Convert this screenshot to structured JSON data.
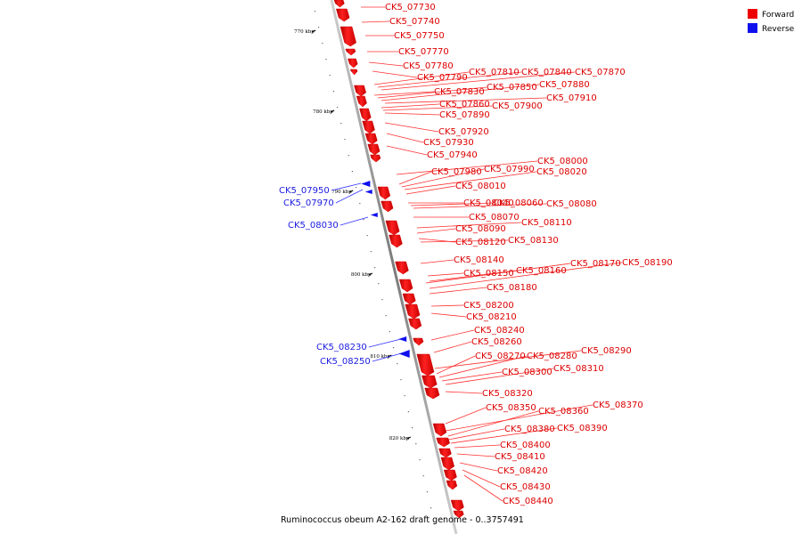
{
  "legend": [
    {
      "label": "Forward",
      "color": "#ee0000"
    },
    {
      "label": "Reverse",
      "color": "#1010ee"
    }
  ],
  "caption": "Ruminococcus obeum A2-162 draft genome - 0..3757491",
  "ticks": [
    "770 kbp",
    "780 kbp",
    "790 kbp",
    "800 kbp",
    "810 kbp",
    "820 kbp"
  ],
  "forward_labels": [
    "CK5_07730",
    "CK5_07740",
    "CK5_07750",
    "CK5_07770",
    "CK5_07780",
    "CK5_07790",
    "CK5_07810",
    "CK5_07840",
    "CK5_07870",
    "CK5_07830",
    "CK5_07850",
    "CK5_07880",
    "CK5_07910",
    "CK5_07860",
    "CK5_07900",
    "CK5_07890",
    "CK5_07920",
    "CK5_07930",
    "CK5_07940",
    "CK5_08000",
    "CK5_07980",
    "CK5_07990",
    "CK5_08020",
    "CK5_08010",
    "CK5_08040",
    "CK5_08060",
    "CK5_08080",
    "CK5_08070",
    "CK5_08110",
    "CK5_08090",
    "CK5_08120",
    "CK5_08130",
    "CK5_08140",
    "CK5_08170",
    "CK5_08190",
    "CK5_08150",
    "CK5_08160",
    "CK5_08180",
    "CK5_08200",
    "CK5_08210",
    "CK5_08240",
    "CK5_08260",
    "CK5_08290",
    "CK5_08270",
    "CK5_08280",
    "CK5_08300",
    "CK5_08310",
    "CK5_08320",
    "CK5_08370",
    "CK5_08350",
    "CK5_08360",
    "CK5_08380",
    "CK5_08390",
    "CK5_08400",
    "CK5_08410",
    "CK5_08420",
    "CK5_08430",
    "CK5_08440"
  ],
  "reverse_labels": [
    "CK5_07950",
    "CK5_07970",
    "CK5_08030",
    "CK5_08230",
    "CK5_08250"
  ]
}
